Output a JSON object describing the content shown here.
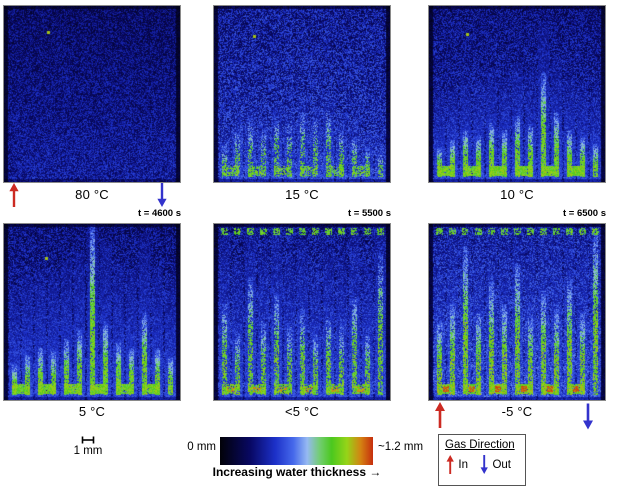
{
  "figure": {
    "panels": [
      {
        "label": "80 °C",
        "timestamp": null,
        "render": {
          "seed": 11,
          "bg": 0.06,
          "amp": 0.26,
          "glow": 0.1,
          "gVal": 0,
          "patch": 0,
          "blueExtra": 0,
          "uBar": false,
          "topDash": false,
          "redU": false,
          "redDots": false,
          "greenH": [
            0,
            0,
            0,
            0,
            0,
            0,
            0,
            0,
            0,
            0,
            0,
            0,
            0
          ],
          "sparkles": [
            [
              44,
              26
            ]
          ]
        }
      },
      {
        "label": "15 °C",
        "timestamp": null,
        "render": {
          "seed": 22,
          "bg": 0.1,
          "amp": 0.34,
          "glow": 0.08,
          "gVal": 0.74,
          "patch": 0.45,
          "blueExtra": 0.08,
          "uBar": true,
          "topDash": false,
          "redU": false,
          "redDots": false,
          "greenH": [
            0.22,
            0.3,
            0.34,
            0.3,
            0.38,
            0.33,
            0.4,
            0.36,
            0.42,
            0.3,
            0.26,
            0.2,
            0.16
          ],
          "sparkles": [
            [
              40,
              30
            ]
          ]
        }
      },
      {
        "label": "10 °C",
        "timestamp": null,
        "render": {
          "seed": 33,
          "bg": 0.08,
          "amp": 0.3,
          "glow": 0.1,
          "gVal": 0.76,
          "patch": 0.85,
          "blueExtra": 0.3,
          "uBar": true,
          "topDash": false,
          "redU": false,
          "redDots": false,
          "greenH": [
            0.2,
            0.24,
            0.3,
            0.27,
            0.34,
            0.3,
            0.38,
            0.33,
            0.62,
            0.4,
            0.3,
            0.26,
            0.22
          ],
          "sparkles": [
            [
              38,
              28
            ]
          ]
        }
      },
      {
        "label": "5 °C",
        "timestamp": "t = 4600 s",
        "render": {
          "seed": 44,
          "bg": 0.08,
          "amp": 0.3,
          "glow": 0.1,
          "gVal": 0.76,
          "patch": 0.85,
          "blueExtra": 0.45,
          "uBar": true,
          "topDash": false,
          "redU": false,
          "redDots": false,
          "greenH": [
            0.2,
            0.26,
            0.3,
            0.28,
            0.35,
            0.4,
            1.0,
            0.45,
            0.33,
            0.3,
            0.5,
            0.3,
            0.24
          ],
          "sparkles": [
            [
              42,
              34
            ]
          ]
        }
      },
      {
        "label": "<5 °C",
        "timestamp": "t = 5500 s",
        "render": {
          "seed": 55,
          "bg": 0.1,
          "amp": 0.32,
          "glow": 0.08,
          "gVal": 0.76,
          "patch": 0.6,
          "blueExtra": 0.4,
          "uBar": true,
          "topDash": true,
          "redU": false,
          "redDots": true,
          "greenH": [
            0.55,
            0.38,
            0.7,
            0.45,
            0.6,
            0.42,
            0.52,
            0.38,
            0.48,
            0.42,
            0.6,
            0.38,
            0.82
          ],
          "sparkles": []
        }
      },
      {
        "label": "-5 °C",
        "timestamp": "t = 6500 s",
        "render": {
          "seed": 66,
          "bg": 0.12,
          "amp": 0.34,
          "glow": 0.08,
          "gVal": 0.78,
          "patch": 0.75,
          "blueExtra": 0.45,
          "uBar": true,
          "topDash": true,
          "redU": true,
          "redDots": false,
          "greenH": [
            0.45,
            0.55,
            0.88,
            0.5,
            0.68,
            0.55,
            0.78,
            0.48,
            0.62,
            0.52,
            0.68,
            0.5,
            0.95
          ],
          "sparkles": []
        }
      }
    ],
    "scalebar": {
      "label": "1 mm"
    },
    "colorbar": {
      "min_label": "0 mm",
      "max_label": "~1.2 mm",
      "caption": "Increasing water thickness →",
      "gradient": [
        [
          0,
          "#020208"
        ],
        [
          20,
          "#080864"
        ],
        [
          36,
          "#1c30c8"
        ],
        [
          48,
          "#4669eb"
        ],
        [
          57,
          "#96b9f2"
        ],
        [
          65,
          "#73cd73"
        ],
        [
          73,
          "#4bc81e"
        ],
        [
          83,
          "#96d418"
        ],
        [
          92,
          "#d48212"
        ],
        [
          100,
          "#c62e0e"
        ]
      ]
    },
    "gas_direction": {
      "title": "Gas Direction",
      "in_label": "In",
      "out_label": "Out",
      "in_color": "#cc2a22",
      "out_color": "#3333cc"
    }
  }
}
